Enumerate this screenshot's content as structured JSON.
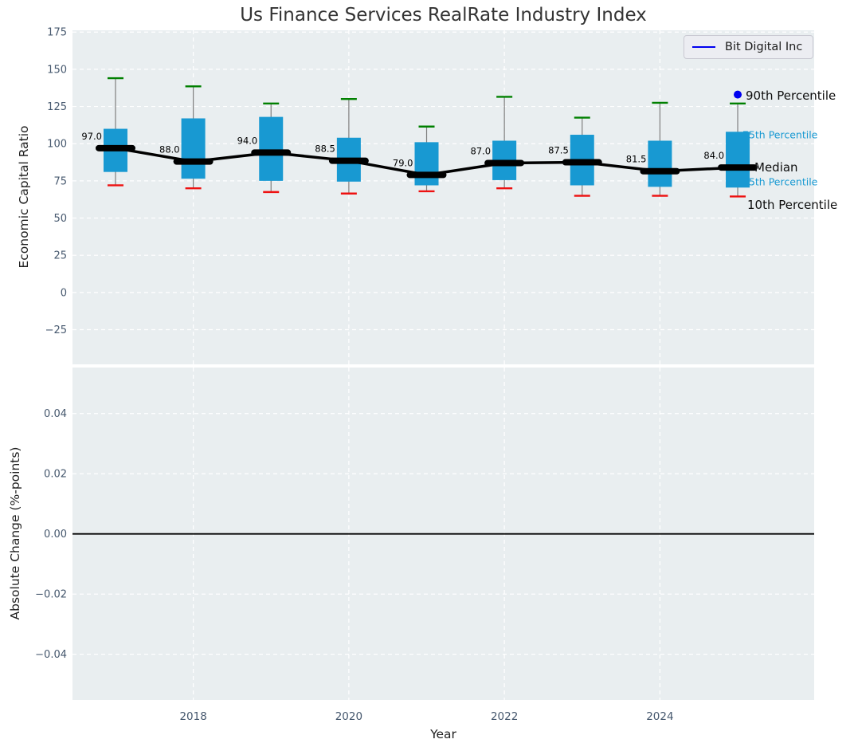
{
  "title": "Us Finance Services RealRate Industry Index",
  "legend": {
    "label": "Bit Digital Inc"
  },
  "annotations": {
    "p90": "90th Percentile",
    "p75": "75th Percentile",
    "median": "Median",
    "p25": "25th Percentile",
    "p10": "10th Percentile"
  },
  "colors": {
    "box_fill": "#1899d2",
    "p90_cap": "#008000",
    "p10_cap": "#ee1111",
    "median_line": "#000000",
    "company": "#0000f0",
    "plot_bg": "#e9eef0",
    "grid": "#ffffff",
    "tick_text": "#46586e",
    "percentile_label": "#1899d2",
    "whisker": "#7f7f7f",
    "zero_line": "#000000",
    "value_label": "#000000"
  },
  "chart_data": [
    {
      "type": "boxplot-timeseries",
      "title": "Us Finance Services RealRate Industry Index",
      "xlabel": "Year",
      "ylabel": "Economic Capital Ratio",
      "xlim": [
        2016.447,
        2025.983
      ],
      "ylim": [
        -48.3,
        176.2
      ],
      "grid": "white dashed",
      "legend_position": "upper right",
      "years": [
        2017,
        2018,
        2019,
        2020,
        2021,
        2022,
        2023,
        2024,
        2025
      ],
      "series": {
        "median": [
          97.0,
          88.0,
          94.0,
          88.5,
          79.0,
          87.0,
          87.5,
          81.5,
          84.0
        ],
        "p75": [
          110,
          117,
          118,
          104,
          101,
          102,
          106,
          102,
          108
        ],
        "p25": [
          81,
          76.5,
          75,
          74.5,
          72,
          75.5,
          72,
          71,
          70.5
        ],
        "p90": [
          144,
          138.5,
          127,
          130,
          111.5,
          131.5,
          117.5,
          127.5,
          127
        ],
        "p10": [
          72,
          70,
          67.5,
          66.5,
          68,
          70,
          65,
          65,
          64.5
        ]
      },
      "median_labels": [
        "97.0",
        "88.0",
        "94.0",
        "88.5",
        "79.0",
        "87.0",
        "87.5",
        "81.5",
        "84.0"
      ],
      "company_point": {
        "name": "Bit Digital Inc",
        "year": 2025,
        "value": 133
      },
      "yticks": [
        {
          "label": "175",
          "value": 175
        },
        {
          "label": "150",
          "value": 150
        },
        {
          "label": "125",
          "value": 125
        },
        {
          "label": "100",
          "value": 100
        },
        {
          "label": "75",
          "value": 75
        },
        {
          "label": "50",
          "value": 50
        },
        {
          "label": "25",
          "value": 25
        },
        {
          "label": "0",
          "value": 0
        },
        {
          "label": "−25",
          "value": -25
        }
      ],
      "xticks": [
        {
          "label": "2018",
          "value": 2018
        },
        {
          "label": "2020",
          "value": 2020
        },
        {
          "label": "2022",
          "value": 2022
        },
        {
          "label": "2024",
          "value": 2024
        }
      ]
    },
    {
      "type": "line",
      "xlabel": "Year",
      "ylabel": "Absolute Change (%-points)",
      "xlim": [
        2016.447,
        2025.983
      ],
      "ylim": [
        -0.0552,
        0.0553
      ],
      "grid": "white dashed",
      "zero_line": 0.0,
      "series": [],
      "yticks": [
        {
          "label": "0.04",
          "value": 0.04
        },
        {
          "label": "0.02",
          "value": 0.02
        },
        {
          "label": "0.00",
          "value": 0.0
        },
        {
          "label": "−0.02",
          "value": -0.02
        },
        {
          "label": "−0.04",
          "value": -0.04
        }
      ],
      "xticks": [
        {
          "label": "2018",
          "value": 2018
        },
        {
          "label": "2020",
          "value": 2020
        },
        {
          "label": "2022",
          "value": 2022
        },
        {
          "label": "2024",
          "value": 2024
        }
      ]
    }
  ]
}
